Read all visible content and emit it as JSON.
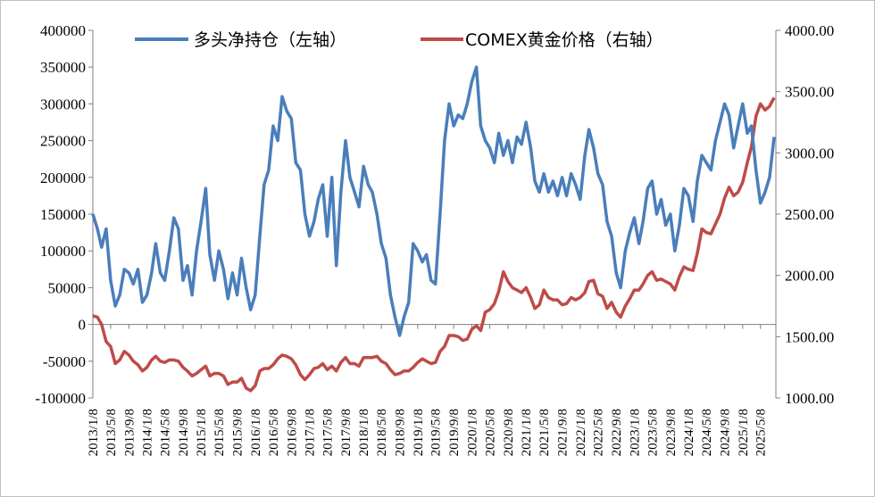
{
  "chart_data": {
    "type": "line",
    "legend_position": "top",
    "grid": false,
    "colors": {
      "long_net": "#4a7ebb",
      "gold": "#be4b48"
    },
    "series": [
      {
        "key": "long_net",
        "name": "多头净持仓（左轴）",
        "axis": "left"
      },
      {
        "key": "gold",
        "name": "COMEX黄金价格（右轴）",
        "axis": "right"
      }
    ],
    "left_axis": {
      "min": -100000,
      "max": 400000,
      "step": 50000,
      "tick_labels": [
        "400000",
        "350000",
        "300000",
        "250000",
        "200000",
        "150000",
        "100000",
        "50000",
        "0",
        "-50000",
        "-100000"
      ]
    },
    "right_axis": {
      "min": 1000,
      "max": 4000,
      "step": 500,
      "tick_labels": [
        "4000.00",
        "3500.00",
        "3000.00",
        "2500.00",
        "2000.00",
        "1500.00",
        "1000.00"
      ]
    },
    "x_range": [
      "2013/1/8",
      "2025/8/8"
    ],
    "x_tick_labels": [
      "2013/1/8",
      "2013/5/8",
      "2013/9/8",
      "2014/1/8",
      "2014/5/8",
      "2014/9/8",
      "2015/1/8",
      "2015/5/8",
      "2015/9/8",
      "2016/1/8",
      "2016/5/8",
      "2016/9/8",
      "2017/1/8",
      "2017/5/8",
      "2017/9/8",
      "2018/1/8",
      "2018/5/8",
      "2018/9/8",
      "2019/1/8",
      "2019/5/8",
      "2019/9/8",
      "2020/1/8",
      "2020/5/8",
      "2020/9/8",
      "2021/1/8",
      "2021/5/8",
      "2021/9/8",
      "2022/1/8",
      "2022/5/8",
      "2022/9/8",
      "2023/1/8",
      "2023/5/8",
      "2023/9/8",
      "2024/1/8",
      "2024/5/8",
      "2024/9/8",
      "2025/1/8",
      "2025/5/8"
    ],
    "long_net": [
      [
        "2013/1/8",
        150000
      ],
      [
        "2013/2/8",
        130000
      ],
      [
        "2013/3/8",
        105000
      ],
      [
        "2013/4/8",
        130000
      ],
      [
        "2013/5/8",
        60000
      ],
      [
        "2013/6/8",
        25000
      ],
      [
        "2013/7/8",
        40000
      ],
      [
        "2013/8/8",
        75000
      ],
      [
        "2013/9/8",
        70000
      ],
      [
        "2013/10/8",
        55000
      ],
      [
        "2013/11/8",
        75000
      ],
      [
        "2013/12/8",
        30000
      ],
      [
        "2014/1/8",
        40000
      ],
      [
        "2014/2/8",
        70000
      ],
      [
        "2014/3/8",
        110000
      ],
      [
        "2014/4/8",
        70000
      ],
      [
        "2014/5/8",
        60000
      ],
      [
        "2014/6/8",
        100000
      ],
      [
        "2014/7/8",
        145000
      ],
      [
        "2014/8/8",
        130000
      ],
      [
        "2014/9/8",
        60000
      ],
      [
        "2014/10/8",
        80000
      ],
      [
        "2014/11/8",
        40000
      ],
      [
        "2014/12/8",
        100000
      ],
      [
        "2015/1/8",
        140000
      ],
      [
        "2015/2/8",
        185000
      ],
      [
        "2015/3/8",
        95000
      ],
      [
        "2015/4/8",
        60000
      ],
      [
        "2015/5/8",
        100000
      ],
      [
        "2015/6/8",
        75000
      ],
      [
        "2015/7/8",
        35000
      ],
      [
        "2015/8/8",
        70000
      ],
      [
        "2015/9/8",
        40000
      ],
      [
        "2015/10/8",
        90000
      ],
      [
        "2015/11/8",
        50000
      ],
      [
        "2015/12/8",
        20000
      ],
      [
        "2016/1/8",
        40000
      ],
      [
        "2016/2/8",
        120000
      ],
      [
        "2016/3/8",
        190000
      ],
      [
        "2016/4/8",
        210000
      ],
      [
        "2016/5/8",
        270000
      ],
      [
        "2016/6/8",
        250000
      ],
      [
        "2016/7/8",
        310000
      ],
      [
        "2016/8/8",
        290000
      ],
      [
        "2016/9/8",
        280000
      ],
      [
        "2016/10/8",
        220000
      ],
      [
        "2016/11/8",
        210000
      ],
      [
        "2016/12/8",
        150000
      ],
      [
        "2017/1/8",
        120000
      ],
      [
        "2017/2/8",
        140000
      ],
      [
        "2017/3/8",
        170000
      ],
      [
        "2017/4/8",
        190000
      ],
      [
        "2017/5/8",
        120000
      ],
      [
        "2017/6/8",
        200000
      ],
      [
        "2017/7/8",
        80000
      ],
      [
        "2017/8/8",
        180000
      ],
      [
        "2017/9/8",
        250000
      ],
      [
        "2017/10/8",
        200000
      ],
      [
        "2017/11/8",
        180000
      ],
      [
        "2017/12/8",
        160000
      ],
      [
        "2018/1/8",
        215000
      ],
      [
        "2018/2/8",
        190000
      ],
      [
        "2018/3/8",
        180000
      ],
      [
        "2018/4/8",
        150000
      ],
      [
        "2018/5/8",
        110000
      ],
      [
        "2018/6/8",
        90000
      ],
      [
        "2018/7/8",
        40000
      ],
      [
        "2018/8/8",
        10000
      ],
      [
        "2018/9/8",
        -15000
      ],
      [
        "2018/10/8",
        10000
      ],
      [
        "2018/11/8",
        30000
      ],
      [
        "2018/12/8",
        110000
      ],
      [
        "2019/1/8",
        100000
      ],
      [
        "2019/2/8",
        85000
      ],
      [
        "2019/3/8",
        95000
      ],
      [
        "2019/4/8",
        60000
      ],
      [
        "2019/5/8",
        55000
      ],
      [
        "2019/6/8",
        150000
      ],
      [
        "2019/7/8",
        250000
      ],
      [
        "2019/8/8",
        300000
      ],
      [
        "2019/9/8",
        270000
      ],
      [
        "2019/10/8",
        285000
      ],
      [
        "2019/11/8",
        280000
      ],
      [
        "2019/12/8",
        300000
      ],
      [
        "2020/1/8",
        330000
      ],
      [
        "2020/2/8",
        350000
      ],
      [
        "2020/3/8",
        270000
      ],
      [
        "2020/4/8",
        250000
      ],
      [
        "2020/5/8",
        240000
      ],
      [
        "2020/6/8",
        220000
      ],
      [
        "2020/7/8",
        260000
      ],
      [
        "2020/8/8",
        230000
      ],
      [
        "2020/9/8",
        250000
      ],
      [
        "2020/10/8",
        220000
      ],
      [
        "2020/11/8",
        255000
      ],
      [
        "2020/12/8",
        245000
      ],
      [
        "2021/1/8",
        275000
      ],
      [
        "2021/2/8",
        240000
      ],
      [
        "2021/3/8",
        195000
      ],
      [
        "2021/4/8",
        180000
      ],
      [
        "2021/5/8",
        205000
      ],
      [
        "2021/6/8",
        180000
      ],
      [
        "2021/7/8",
        195000
      ],
      [
        "2021/8/8",
        175000
      ],
      [
        "2021/9/8",
        200000
      ],
      [
        "2021/10/8",
        175000
      ],
      [
        "2021/11/8",
        205000
      ],
      [
        "2021/12/8",
        190000
      ],
      [
        "2022/1/8",
        170000
      ],
      [
        "2022/2/8",
        230000
      ],
      [
        "2022/3/8",
        265000
      ],
      [
        "2022/4/8",
        240000
      ],
      [
        "2022/5/8",
        205000
      ],
      [
        "2022/6/8",
        190000
      ],
      [
        "2022/7/8",
        140000
      ],
      [
        "2022/8/8",
        120000
      ],
      [
        "2022/9/8",
        70000
      ],
      [
        "2022/10/8",
        50000
      ],
      [
        "2022/11/8",
        100000
      ],
      [
        "2022/12/8",
        125000
      ],
      [
        "2023/1/8",
        145000
      ],
      [
        "2023/2/8",
        110000
      ],
      [
        "2023/3/8",
        140000
      ],
      [
        "2023/4/8",
        185000
      ],
      [
        "2023/5/8",
        195000
      ],
      [
        "2023/6/8",
        150000
      ],
      [
        "2023/7/8",
        170000
      ],
      [
        "2023/8/8",
        135000
      ],
      [
        "2023/9/8",
        150000
      ],
      [
        "2023/10/8",
        100000
      ],
      [
        "2023/11/8",
        135000
      ],
      [
        "2023/12/8",
        185000
      ],
      [
        "2024/1/8",
        175000
      ],
      [
        "2024/2/8",
        140000
      ],
      [
        "2024/3/8",
        195000
      ],
      [
        "2024/4/8",
        230000
      ],
      [
        "2024/5/8",
        220000
      ],
      [
        "2024/6/8",
        210000
      ],
      [
        "2024/7/8",
        250000
      ],
      [
        "2024/8/8",
        275000
      ],
      [
        "2024/9/8",
        300000
      ],
      [
        "2024/10/8",
        285000
      ],
      [
        "2024/11/8",
        240000
      ],
      [
        "2024/12/8",
        270000
      ],
      [
        "2025/1/8",
        300000
      ],
      [
        "2025/2/8",
        260000
      ],
      [
        "2025/3/8",
        270000
      ],
      [
        "2025/4/8",
        210000
      ],
      [
        "2025/5/8",
        165000
      ],
      [
        "2025/6/8",
        180000
      ],
      [
        "2025/7/8",
        200000
      ],
      [
        "2025/8/8",
        255000
      ]
    ],
    "gold": [
      [
        "2013/1/8",
        1670
      ],
      [
        "2013/2/8",
        1660
      ],
      [
        "2013/3/8",
        1600
      ],
      [
        "2013/4/8",
        1460
      ],
      [
        "2013/5/8",
        1420
      ],
      [
        "2013/6/8",
        1280
      ],
      [
        "2013/7/8",
        1310
      ],
      [
        "2013/8/8",
        1380
      ],
      [
        "2013/9/8",
        1350
      ],
      [
        "2013/10/8",
        1300
      ],
      [
        "2013/11/8",
        1270
      ],
      [
        "2013/12/8",
        1220
      ],
      [
        "2014/1/8",
        1250
      ],
      [
        "2014/2/8",
        1310
      ],
      [
        "2014/3/8",
        1340
      ],
      [
        "2014/4/8",
        1300
      ],
      [
        "2014/5/8",
        1290
      ],
      [
        "2014/6/8",
        1310
      ],
      [
        "2014/7/8",
        1310
      ],
      [
        "2014/8/8",
        1300
      ],
      [
        "2014/9/8",
        1250
      ],
      [
        "2014/10/8",
        1220
      ],
      [
        "2014/11/8",
        1180
      ],
      [
        "2014/12/8",
        1200
      ],
      [
        "2015/1/8",
        1230
      ],
      [
        "2015/2/8",
        1260
      ],
      [
        "2015/3/8",
        1180
      ],
      [
        "2015/4/8",
        1200
      ],
      [
        "2015/5/8",
        1200
      ],
      [
        "2015/6/8",
        1180
      ],
      [
        "2015/7/8",
        1110
      ],
      [
        "2015/8/8",
        1130
      ],
      [
        "2015/9/8",
        1130
      ],
      [
        "2015/10/8",
        1160
      ],
      [
        "2015/11/8",
        1080
      ],
      [
        "2015/12/8",
        1060
      ],
      [
        "2016/1/8",
        1100
      ],
      [
        "2016/2/8",
        1220
      ],
      [
        "2016/3/8",
        1240
      ],
      [
        "2016/4/8",
        1240
      ],
      [
        "2016/5/8",
        1270
      ],
      [
        "2016/6/8",
        1320
      ],
      [
        "2016/7/8",
        1350
      ],
      [
        "2016/8/8",
        1340
      ],
      [
        "2016/9/8",
        1320
      ],
      [
        "2016/10/8",
        1270
      ],
      [
        "2016/11/8",
        1190
      ],
      [
        "2016/12/8",
        1150
      ],
      [
        "2017/1/8",
        1190
      ],
      [
        "2017/2/8",
        1240
      ],
      [
        "2017/3/8",
        1250
      ],
      [
        "2017/4/8",
        1280
      ],
      [
        "2017/5/8",
        1230
      ],
      [
        "2017/6/8",
        1260
      ],
      [
        "2017/7/8",
        1220
      ],
      [
        "2017/8/8",
        1290
      ],
      [
        "2017/9/8",
        1330
      ],
      [
        "2017/10/8",
        1280
      ],
      [
        "2017/11/8",
        1280
      ],
      [
        "2017/12/8",
        1260
      ],
      [
        "2018/1/8",
        1330
      ],
      [
        "2018/2/8",
        1330
      ],
      [
        "2018/3/8",
        1330
      ],
      [
        "2018/4/8",
        1340
      ],
      [
        "2018/5/8",
        1300
      ],
      [
        "2018/6/8",
        1280
      ],
      [
        "2018/7/8",
        1230
      ],
      [
        "2018/8/8",
        1190
      ],
      [
        "2018/9/8",
        1200
      ],
      [
        "2018/10/8",
        1220
      ],
      [
        "2018/11/8",
        1220
      ],
      [
        "2018/12/8",
        1250
      ],
      [
        "2019/1/8",
        1290
      ],
      [
        "2019/2/8",
        1320
      ],
      [
        "2019/3/8",
        1300
      ],
      [
        "2019/4/8",
        1280
      ],
      [
        "2019/5/8",
        1290
      ],
      [
        "2019/6/8",
        1380
      ],
      [
        "2019/7/8",
        1420
      ],
      [
        "2019/8/8",
        1510
      ],
      [
        "2019/9/8",
        1510
      ],
      [
        "2019/10/8",
        1500
      ],
      [
        "2019/11/8",
        1470
      ],
      [
        "2019/12/8",
        1480
      ],
      [
        "2020/1/8",
        1560
      ],
      [
        "2020/2/8",
        1590
      ],
      [
        "2020/3/8",
        1550
      ],
      [
        "2020/4/8",
        1700
      ],
      [
        "2020/5/8",
        1720
      ],
      [
        "2020/6/8",
        1770
      ],
      [
        "2020/7/8",
        1870
      ],
      [
        "2020/8/8",
        2030
      ],
      [
        "2020/9/8",
        1950
      ],
      [
        "2020/10/8",
        1900
      ],
      [
        "2020/11/8",
        1880
      ],
      [
        "2020/12/8",
        1860
      ],
      [
        "2021/1/8",
        1900
      ],
      [
        "2021/2/8",
        1820
      ],
      [
        "2021/3/8",
        1730
      ],
      [
        "2021/4/8",
        1760
      ],
      [
        "2021/5/8",
        1880
      ],
      [
        "2021/6/8",
        1820
      ],
      [
        "2021/7/8",
        1800
      ],
      [
        "2021/8/8",
        1800
      ],
      [
        "2021/9/8",
        1760
      ],
      [
        "2021/10/8",
        1770
      ],
      [
        "2021/11/8",
        1820
      ],
      [
        "2021/12/8",
        1800
      ],
      [
        "2022/1/8",
        1820
      ],
      [
        "2022/2/8",
        1860
      ],
      [
        "2022/3/8",
        1950
      ],
      [
        "2022/4/8",
        1960
      ],
      [
        "2022/5/8",
        1850
      ],
      [
        "2022/6/8",
        1830
      ],
      [
        "2022/7/8",
        1730
      ],
      [
        "2022/8/8",
        1780
      ],
      [
        "2022/9/8",
        1700
      ],
      [
        "2022/10/8",
        1660
      ],
      [
        "2022/11/8",
        1750
      ],
      [
        "2022/12/8",
        1810
      ],
      [
        "2023/1/8",
        1880
      ],
      [
        "2023/2/8",
        1880
      ],
      [
        "2023/3/8",
        1930
      ],
      [
        "2023/4/8",
        2000
      ],
      [
        "2023/5/8",
        2030
      ],
      [
        "2023/6/8",
        1960
      ],
      [
        "2023/7/8",
        1970
      ],
      [
        "2023/8/8",
        1950
      ],
      [
        "2023/9/8",
        1930
      ],
      [
        "2023/10/8",
        1880
      ],
      [
        "2023/11/8",
        1990
      ],
      [
        "2023/12/8",
        2070
      ],
      [
        "2024/1/8",
        2050
      ],
      [
        "2024/2/8",
        2040
      ],
      [
        "2024/3/8",
        2180
      ],
      [
        "2024/4/8",
        2380
      ],
      [
        "2024/5/8",
        2350
      ],
      [
        "2024/6/8",
        2340
      ],
      [
        "2024/7/8",
        2420
      ],
      [
        "2024/8/8",
        2500
      ],
      [
        "2024/9/8",
        2630
      ],
      [
        "2024/10/8",
        2720
      ],
      [
        "2024/11/8",
        2650
      ],
      [
        "2024/12/8",
        2680
      ],
      [
        "2025/1/8",
        2760
      ],
      [
        "2025/2/8",
        2920
      ],
      [
        "2025/3/8",
        3050
      ],
      [
        "2025/4/8",
        3300
      ],
      [
        "2025/5/8",
        3400
      ],
      [
        "2025/6/8",
        3350
      ],
      [
        "2025/7/8",
        3380
      ],
      [
        "2025/8/8",
        3450
      ]
    ]
  }
}
